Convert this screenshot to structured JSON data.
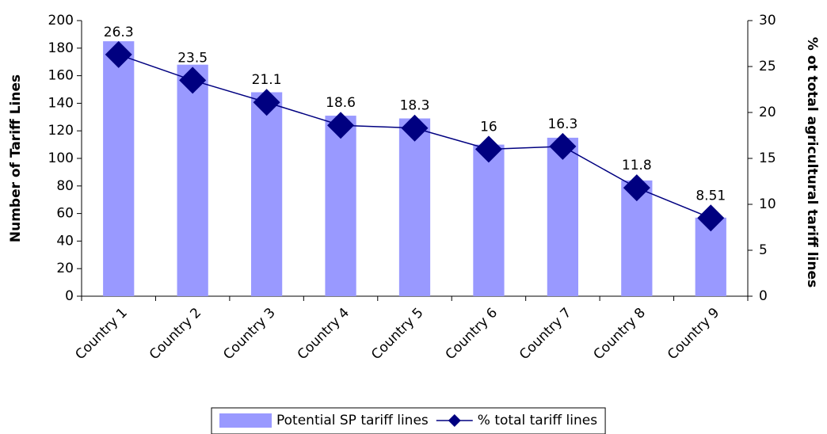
{
  "chart_data": {
    "type": "bar",
    "categories": [
      "Country 1",
      "Country 2",
      "Country 3",
      "Country 4",
      "Country 5",
      "Country 6",
      "Country 7",
      "Country 8",
      "Country 9"
    ],
    "series": [
      {
        "name": "Potential SP tariff lines",
        "color": "#9999ff",
        "values": [
          185,
          168,
          148,
          131,
          129,
          110,
          115,
          84,
          57
        ]
      },
      {
        "name": "% total tariff lines",
        "type": "line",
        "axis": "y2",
        "color": "#000080",
        "values": [
          26.3,
          23.5,
          21.1,
          18.6,
          18.3,
          16,
          16.3,
          11.8,
          8.51
        ]
      }
    ],
    "y_label": "Number of Tariff Lines",
    "y2_label": "% ot total agricultural tariff lines",
    "ylim": [
      0,
      200
    ],
    "yticks": [
      0,
      20,
      40,
      60,
      80,
      100,
      120,
      140,
      160,
      180,
      200
    ],
    "y2lim": [
      0,
      30
    ],
    "y2ticks": [
      0,
      5,
      10,
      15,
      20,
      25,
      30
    ],
    "legend": "bottom"
  }
}
